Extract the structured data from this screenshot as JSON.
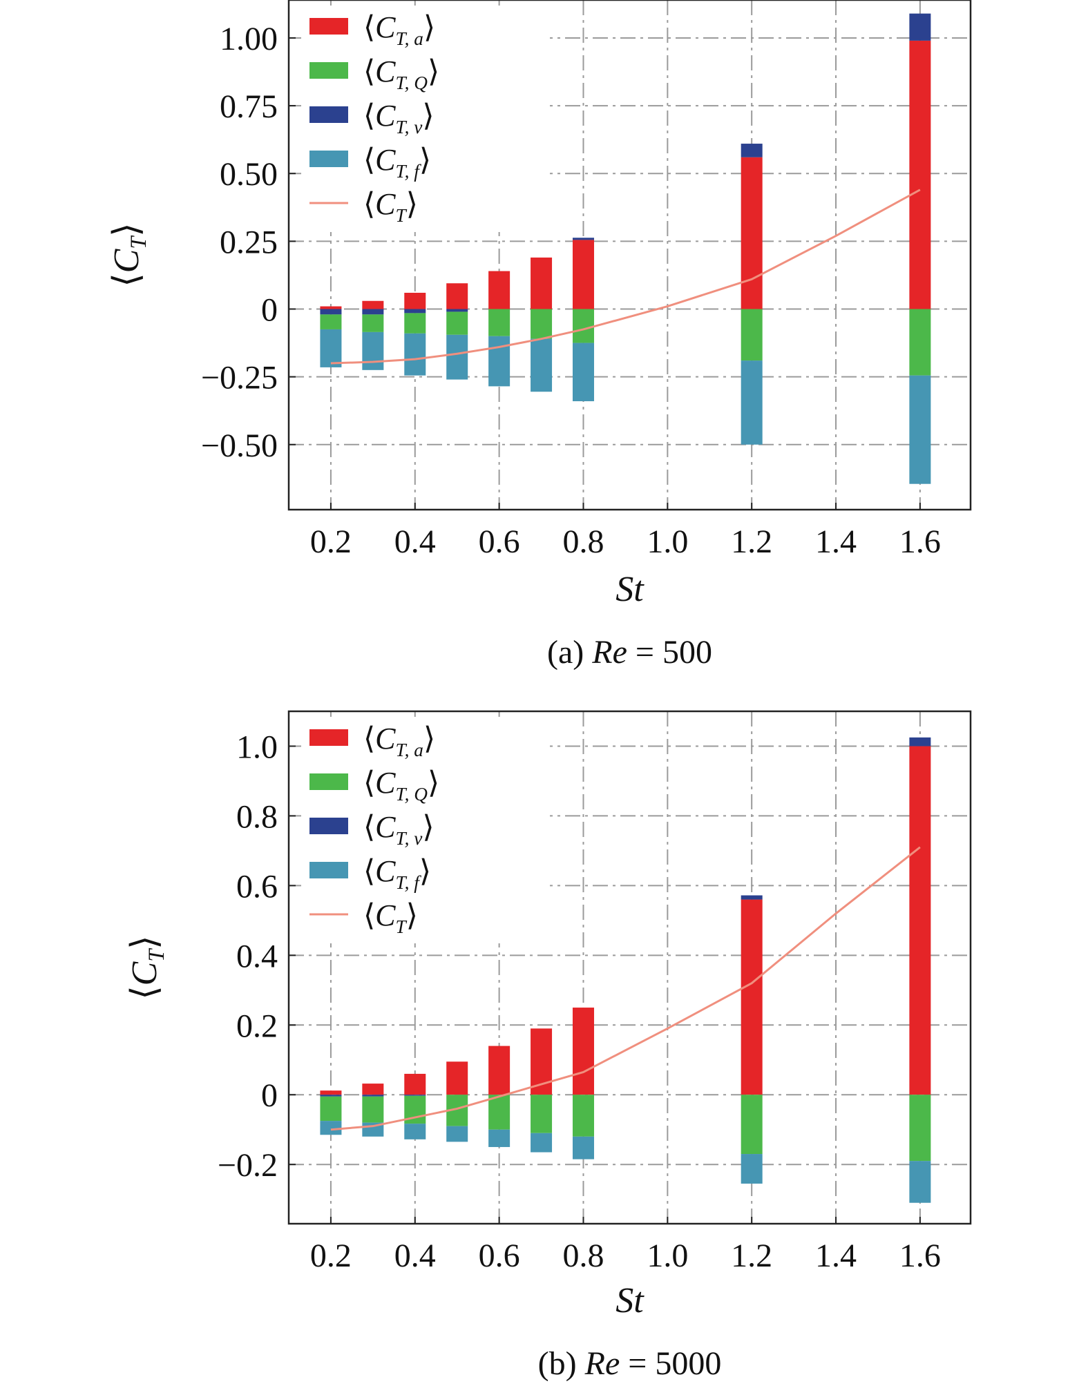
{
  "chart_data": [
    {
      "type": "bar",
      "stacked": true,
      "caption": "(a) Re = 500",
      "caption_parts": [
        "(a) ",
        "Re",
        " = 500"
      ],
      "xlabel": "St",
      "ylabel": "⟨C_T⟩",
      "xlim": [
        0.1,
        1.72
      ],
      "ylim": [
        -0.74,
        1.14
      ],
      "xticks": [
        0.2,
        0.4,
        0.6,
        0.8,
        1.0,
        1.2,
        1.4,
        1.6
      ],
      "xtick_labels": [
        "0.2",
        "0.4",
        "0.6",
        "0.8",
        "1.0",
        "1.2",
        "1.4",
        "1.6"
      ],
      "yticks": [
        1.0,
        0.75,
        0.5,
        0.25,
        0,
        -0.25,
        -0.5
      ],
      "ytick_labels": [
        "1.00",
        "0.75",
        "0.50",
        "0.25",
        "0",
        "−0.25",
        "−0.50"
      ],
      "grid": true,
      "legend_position": "top-left",
      "categories": [
        0.2,
        0.3,
        0.4,
        0.5,
        0.6,
        0.7,
        0.8,
        1.2,
        1.6
      ],
      "series": [
        {
          "name": "⟨C_T, a⟩",
          "color": "#e52528",
          "values": [
            0.01,
            0.03,
            0.06,
            0.095,
            0.14,
            0.19,
            0.255,
            0.56,
            0.99
          ]
        },
        {
          "name": "⟨C_T, v⟩",
          "color": "#2b418f",
          "values": [
            -0.02,
            -0.02,
            -0.015,
            -0.01,
            0.0,
            0.0,
            0.008,
            0.05,
            0.1
          ]
        },
        {
          "name": "⟨C_T, Q⟩",
          "color": "#4cb84a",
          "values": [
            -0.055,
            -0.065,
            -0.075,
            -0.085,
            -0.1,
            -0.11,
            -0.125,
            -0.19,
            -0.245
          ]
        },
        {
          "name": "⟨C_T, f⟩",
          "color": "#4696b3",
          "values": [
            -0.14,
            -0.14,
            -0.155,
            -0.165,
            -0.185,
            -0.195,
            -0.215,
            -0.31,
            -0.4
          ]
        }
      ],
      "line": {
        "name": "⟨C_T⟩",
        "color": "#f08f7e",
        "x": [
          0.2,
          0.3,
          0.4,
          0.5,
          0.6,
          0.7,
          0.8,
          1.0,
          1.2,
          1.4,
          1.6
        ],
        "y": [
          -0.2,
          -0.195,
          -0.185,
          -0.165,
          -0.14,
          -0.11,
          -0.075,
          0.01,
          0.11,
          0.27,
          0.44
        ]
      }
    },
    {
      "type": "bar",
      "stacked": true,
      "caption": "(b) Re = 5000",
      "caption_parts": [
        "(b) ",
        "Re",
        " = 5000"
      ],
      "xlabel": "St",
      "ylabel": "⟨C_T⟩",
      "xlim": [
        0.1,
        1.72
      ],
      "ylim": [
        -0.37,
        1.1
      ],
      "xticks": [
        0.2,
        0.4,
        0.6,
        0.8,
        1.0,
        1.2,
        1.4,
        1.6
      ],
      "xtick_labels": [
        "0.2",
        "0.4",
        "0.6",
        "0.8",
        "1.0",
        "1.2",
        "1.4",
        "1.6"
      ],
      "yticks": [
        1.0,
        0.8,
        0.6,
        0.4,
        0.2,
        0,
        -0.2
      ],
      "ytick_labels": [
        "1.0",
        "0.8",
        "0.6",
        "0.4",
        "0.2",
        "0",
        "−0.2"
      ],
      "grid": true,
      "legend_position": "top-left",
      "categories": [
        0.2,
        0.3,
        0.4,
        0.5,
        0.6,
        0.7,
        0.8,
        1.2,
        1.6
      ],
      "series": [
        {
          "name": "⟨C_T, a⟩",
          "color": "#e52528",
          "values": [
            0.012,
            0.032,
            0.06,
            0.095,
            0.14,
            0.19,
            0.25,
            0.56,
            1.0
          ]
        },
        {
          "name": "⟨C_T, v⟩",
          "color": "#2b418f",
          "values": [
            -0.005,
            -0.005,
            -0.003,
            0.0,
            0.0,
            0.0,
            0.0,
            0.012,
            0.025
          ]
        },
        {
          "name": "⟨C_T, Q⟩",
          "color": "#4cb84a",
          "values": [
            -0.07,
            -0.075,
            -0.08,
            -0.09,
            -0.1,
            -0.11,
            -0.12,
            -0.17,
            -0.19
          ]
        },
        {
          "name": "⟨C_T, f⟩",
          "color": "#4696b3",
          "values": [
            -0.04,
            -0.04,
            -0.045,
            -0.045,
            -0.05,
            -0.055,
            -0.065,
            -0.085,
            -0.12
          ]
        }
      ],
      "line": {
        "name": "⟨C_T⟩",
        "color": "#f08f7e",
        "x": [
          0.2,
          0.3,
          0.4,
          0.5,
          0.6,
          0.7,
          0.8,
          1.0,
          1.2,
          1.4,
          1.6
        ],
        "y": [
          -0.1,
          -0.09,
          -0.065,
          -0.04,
          -0.005,
          0.03,
          0.065,
          0.19,
          0.32,
          0.52,
          0.71
        ]
      }
    }
  ]
}
